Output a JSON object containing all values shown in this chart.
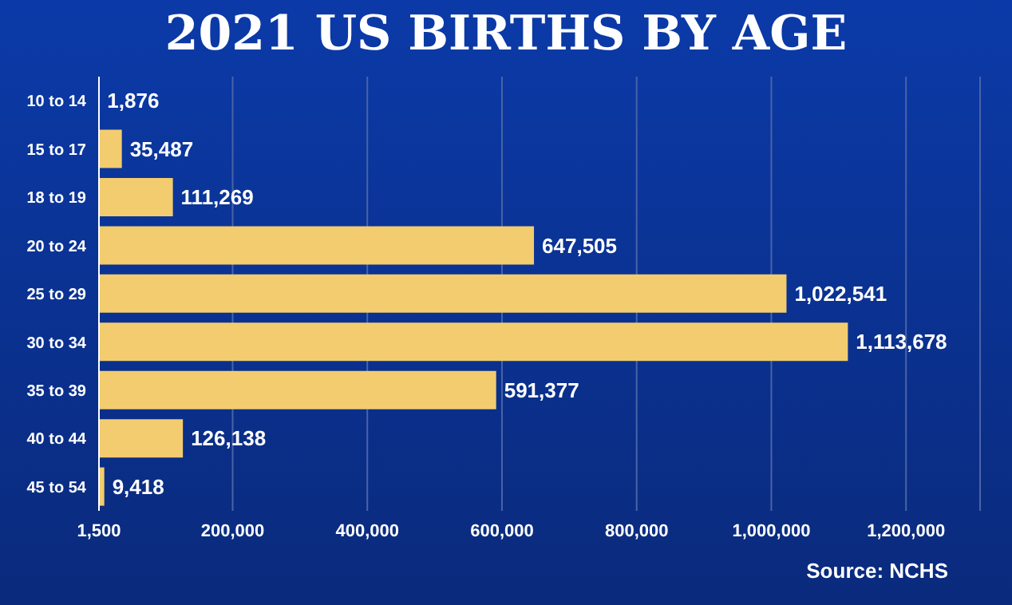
{
  "chart_data": {
    "type": "bar",
    "orientation": "horizontal",
    "title": "2021 US BIRTHS BY AGE",
    "categories": [
      "10 to 14",
      "15 to 17",
      "18 to 19",
      "20 to 24",
      "25 to 29",
      "30 to 34",
      "35 to 39",
      "40 to 44",
      "45 to 54"
    ],
    "values": [
      1876,
      35487,
      111269,
      647505,
      1022541,
      1113678,
      591377,
      126138,
      9418
    ],
    "color": "#f2cc6e",
    "value_labels": [
      "1,876",
      "35,487",
      "111,269",
      "647,505",
      "1,022,541",
      "1,113,678",
      "591,377",
      "126,138",
      "9,418"
    ],
    "xlim": [
      1500,
      1310000
    ],
    "xticks": [
      {
        "value": 1500,
        "label": "1,500"
      },
      {
        "value": 200000,
        "label": "200,000"
      },
      {
        "value": 400000,
        "label": "400,000"
      },
      {
        "value": 600000,
        "label": "600,000"
      },
      {
        "value": 800000,
        "label": "800,000"
      },
      {
        "value": 1000000,
        "label": "1,000,000"
      },
      {
        "value": 1200000,
        "label": "1,200,000"
      }
    ],
    "grid": "x",
    "annotations": [
      "Source: NCHS"
    ]
  }
}
